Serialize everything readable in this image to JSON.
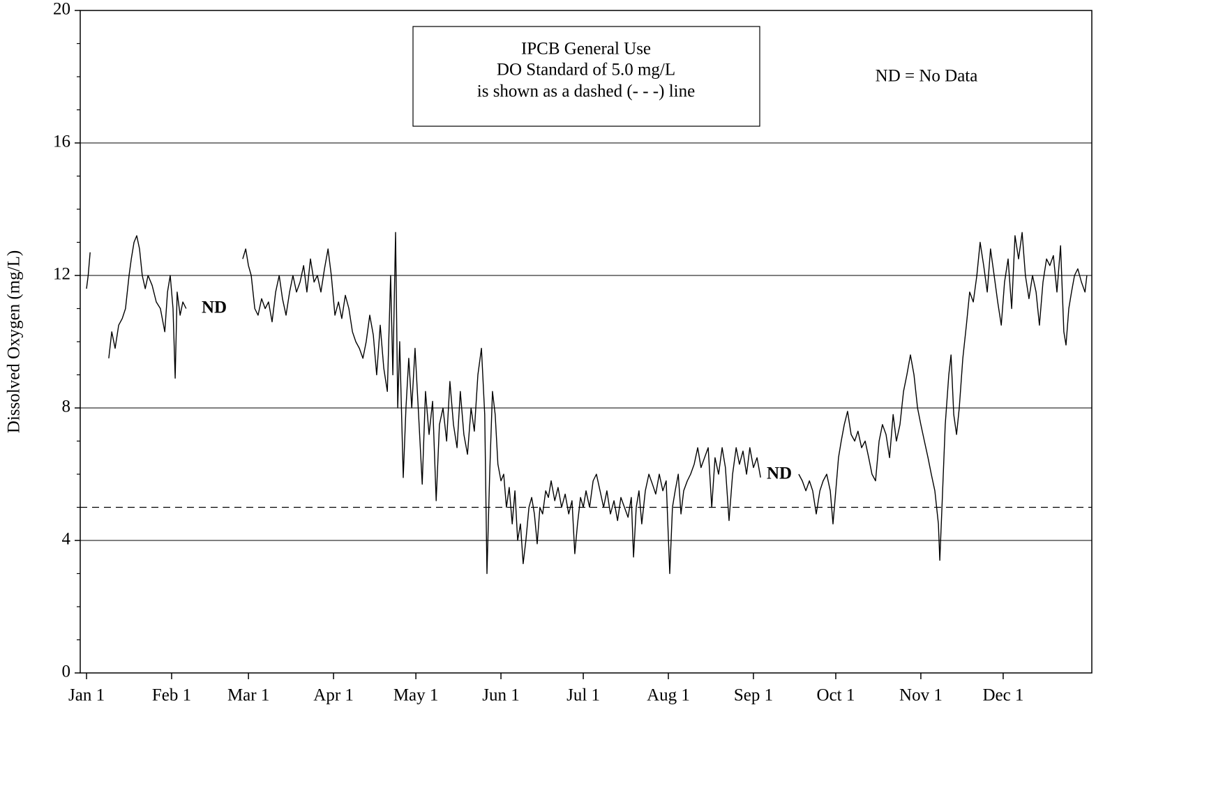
{
  "chart_data": {
    "type": "line",
    "ylabel": "Dissolved Oxygen (mg/L)",
    "annotations": {
      "standard_box": [
        "IPCB General Use",
        "DO Standard of 5.0 mg/L",
        "is shown as a dashed (- - -) line"
      ],
      "legend_note": "ND = No Data",
      "no_data_1": "ND",
      "no_data_2": "ND"
    },
    "reference_line": {
      "value": 5,
      "dashed": true
    },
    "color": "#000000",
    "grid": true,
    "xlim": [
      -1.3,
      367.3
    ],
    "xticks": [
      {
        "value": 1,
        "label": "Jan 1"
      },
      {
        "value": 32,
        "label": "Feb 1"
      },
      {
        "value": 60,
        "label": "Mar 1"
      },
      {
        "value": 91,
        "label": "Apr 1"
      },
      {
        "value": 121,
        "label": "May 1"
      },
      {
        "value": 152,
        "label": "Jun 1"
      },
      {
        "value": 182,
        "label": "Jul 1"
      },
      {
        "value": 213,
        "label": "Aug 1"
      },
      {
        "value": 244,
        "label": "Sep 1"
      },
      {
        "value": 274,
        "label": "Oct 1"
      },
      {
        "value": 305,
        "label": "Nov 1"
      },
      {
        "value": 335,
        "label": "Dec 1"
      }
    ],
    "ylim": [
      0,
      20
    ],
    "yticks": [
      0,
      4,
      8,
      12,
      16,
      20
    ],
    "yminorticks": [
      1,
      2,
      3,
      5,
      6,
      7,
      9,
      10,
      11,
      13,
      14,
      15,
      17,
      18,
      19
    ],
    "x": [
      1,
      1.6,
      2.3,
      null,
      9.1,
      10.2,
      11.4,
      12.7,
      14.0,
      15.2,
      16.5,
      17.3,
      18.3,
      19.3,
      20.3,
      21.3,
      22.4,
      23.4,
      24.9,
      26.4,
      27.9,
      29.5,
      30.5,
      31.5,
      32.5,
      33.3,
      34.0,
      35.1,
      36.1,
      37.3,
      null,
      57.9,
      59.0,
      60.0,
      61.0,
      62.3,
      63.5,
      64.8,
      66.1,
      67.3,
      68.6,
      69.9,
      71.2,
      72.4,
      73.7,
      75.0,
      76.2,
      77.5,
      78.8,
      80.1,
      81.3,
      82.6,
      83.9,
      85.1,
      86.4,
      87.7,
      89.0,
      90.2,
      91.5,
      92.8,
      94.0,
      95.3,
      96.6,
      97.9,
      99.1,
      100.4,
      101.7,
      102.9,
      104.2,
      105.5,
      106.7,
      108.0,
      109.3,
      110.6,
      111.8,
      112.6,
      113.6,
      114.4,
      115.1,
      116.4,
      117.4,
      118.4,
      119.5,
      120.7,
      122.0,
      123.3,
      124.5,
      125.8,
      127.1,
      128.4,
      129.6,
      130.9,
      132.2,
      133.4,
      134.7,
      136.0,
      137.2,
      138.5,
      139.8,
      141.1,
      142.3,
      143.6,
      144.9,
      146.1,
      146.9,
      147.9,
      148.9,
      149.9,
      150.9,
      152.0,
      153.0,
      154.0,
      155.0,
      156.1,
      157.1,
      158.1,
      159.1,
      160.1,
      161.1,
      162.2,
      163.2,
      164.2,
      165.2,
      166.2,
      167.2,
      168.3,
      169.3,
      170.3,
      171.6,
      172.8,
      174.1,
      175.4,
      176.7,
      177.9,
      178.9,
      179.9,
      181.0,
      182.0,
      183.0,
      184.3,
      185.6,
      186.8,
      188.1,
      189.4,
      190.6,
      191.9,
      193.2,
      194.5,
      195.7,
      197.0,
      198.3,
      199.5,
      200.3,
      201.3,
      202.3,
      203.3,
      204.6,
      205.9,
      207.2,
      208.4,
      209.7,
      211.0,
      212.2,
      213.5,
      214.5,
      215.5,
      216.6,
      217.6,
      218.6,
      219.9,
      221.1,
      222.4,
      223.7,
      224.9,
      226.2,
      227.5,
      228.8,
      230.0,
      231.3,
      232.6,
      233.8,
      235.1,
      236.4,
      237.7,
      238.9,
      240.2,
      241.5,
      242.7,
      244.0,
      245.3,
      246.6,
      null,
      260.5,
      261.8,
      263.1,
      264.4,
      265.6,
      266.9,
      268.2,
      269.4,
      270.7,
      272.0,
      273.0,
      274.0,
      275.0,
      276.0,
      277.1,
      278.3,
      279.6,
      280.9,
      282.1,
      283.4,
      284.7,
      286.0,
      287.2,
      288.5,
      289.8,
      291.0,
      292.3,
      293.6,
      294.9,
      296.1,
      297.4,
      298.7,
      299.9,
      301.2,
      302.5,
      303.8,
      305.0,
      306.3,
      307.6,
      308.8,
      310.1,
      311.4,
      311.9,
      312.7,
      313.9,
      315.2,
      316.0,
      317.0,
      318.0,
      319.0,
      320.3,
      321.6,
      322.8,
      324.1,
      325.4,
      326.6,
      327.9,
      329.2,
      330.4,
      331.7,
      333.0,
      334.3,
      335.5,
      336.8,
      338.1,
      339.3,
      340.6,
      341.9,
      343.1,
      344.4,
      345.7,
      347.0,
      348.2,
      349.5,
      350.8,
      352.0,
      353.3,
      354.6,
      355.9,
      357.1,
      357.9,
      358.9,
      359.9,
      361.0,
      362.2,
      363.5,
      364.8,
      365.5
    ],
    "values": [
      11.6,
      12.0,
      12.7,
      null,
      9.5,
      10.3,
      9.8,
      10.5,
      10.7,
      11.0,
      12.0,
      12.5,
      13.0,
      13.2,
      12.8,
      12.0,
      11.6,
      12.0,
      11.7,
      11.2,
      11.0,
      10.3,
      11.5,
      12.0,
      11.0,
      8.9,
      11.5,
      10.8,
      11.2,
      11.0,
      null,
      12.5,
      12.8,
      12.3,
      12.0,
      11.0,
      10.8,
      11.3,
      11.0,
      11.2,
      10.6,
      11.5,
      12.0,
      11.3,
      10.8,
      11.5,
      12.0,
      11.5,
      11.8,
      12.3,
      11.5,
      12.5,
      11.8,
      12.0,
      11.5,
      12.2,
      12.8,
      12.0,
      10.8,
      11.2,
      10.7,
      11.4,
      11.0,
      10.3,
      10.0,
      9.8,
      9.5,
      10.0,
      10.8,
      10.2,
      9.0,
      10.5,
      9.2,
      8.5,
      12.0,
      9.0,
      13.3,
      8.0,
      10.0,
      5.9,
      8.0,
      9.5,
      8.0,
      9.8,
      7.8,
      5.7,
      8.5,
      7.2,
      8.2,
      5.2,
      7.5,
      8.0,
      7.0,
      8.8,
      7.5,
      6.8,
      8.5,
      7.2,
      6.6,
      8.0,
      7.3,
      9.0,
      9.8,
      7.8,
      3.0,
      6.0,
      8.5,
      7.8,
      6.3,
      5.8,
      6.0,
      5.0,
      5.6,
      4.5,
      5.5,
      4.0,
      4.5,
      3.3,
      4.0,
      5.0,
      5.3,
      4.8,
      3.9,
      5.0,
      4.8,
      5.5,
      5.3,
      5.8,
      5.2,
      5.6,
      5.0,
      5.4,
      4.8,
      5.2,
      3.6,
      4.5,
      5.3,
      5.0,
      5.5,
      5.0,
      5.8,
      6.0,
      5.5,
      5.0,
      5.5,
      4.8,
      5.2,
      4.6,
      5.3,
      5.0,
      4.7,
      5.3,
      3.5,
      5.0,
      5.5,
      4.5,
      5.5,
      6.0,
      5.7,
      5.4,
      6.0,
      5.5,
      5.8,
      3.0,
      5.0,
      5.5,
      6.0,
      4.8,
      5.5,
      5.8,
      6.0,
      6.3,
      6.8,
      6.2,
      6.5,
      6.8,
      5.0,
      6.5,
      6.0,
      6.8,
      6.2,
      4.6,
      6.0,
      6.8,
      6.3,
      6.7,
      6.0,
      6.8,
      6.2,
      6.5,
      5.9,
      null,
      6.0,
      5.8,
      5.5,
      5.8,
      5.5,
      4.8,
      5.5,
      5.8,
      6.0,
      5.5,
      4.5,
      5.5,
      6.5,
      7.0,
      7.5,
      7.9,
      7.2,
      7.0,
      7.3,
      6.8,
      7.0,
      6.5,
      6.0,
      5.8,
      7.0,
      7.5,
      7.2,
      6.5,
      7.8,
      7.0,
      7.5,
      8.5,
      9.0,
      9.6,
      9.0,
      8.0,
      7.5,
      7.0,
      6.5,
      6.0,
      5.5,
      4.5,
      3.4,
      5.0,
      7.5,
      9.0,
      9.6,
      7.8,
      7.2,
      8.0,
      9.5,
      10.5,
      11.5,
      11.2,
      12.0,
      13.0,
      12.3,
      11.5,
      12.8,
      12.0,
      11.2,
      10.5,
      11.8,
      12.5,
      11.0,
      13.2,
      12.5,
      13.3,
      12.0,
      11.3,
      12.0,
      11.5,
      10.5,
      11.8,
      12.5,
      12.3,
      12.6,
      11.5,
      12.9,
      10.3,
      9.9,
      11.0,
      11.5,
      12.0,
      12.2,
      11.8,
      11.5,
      12.0
    ]
  }
}
